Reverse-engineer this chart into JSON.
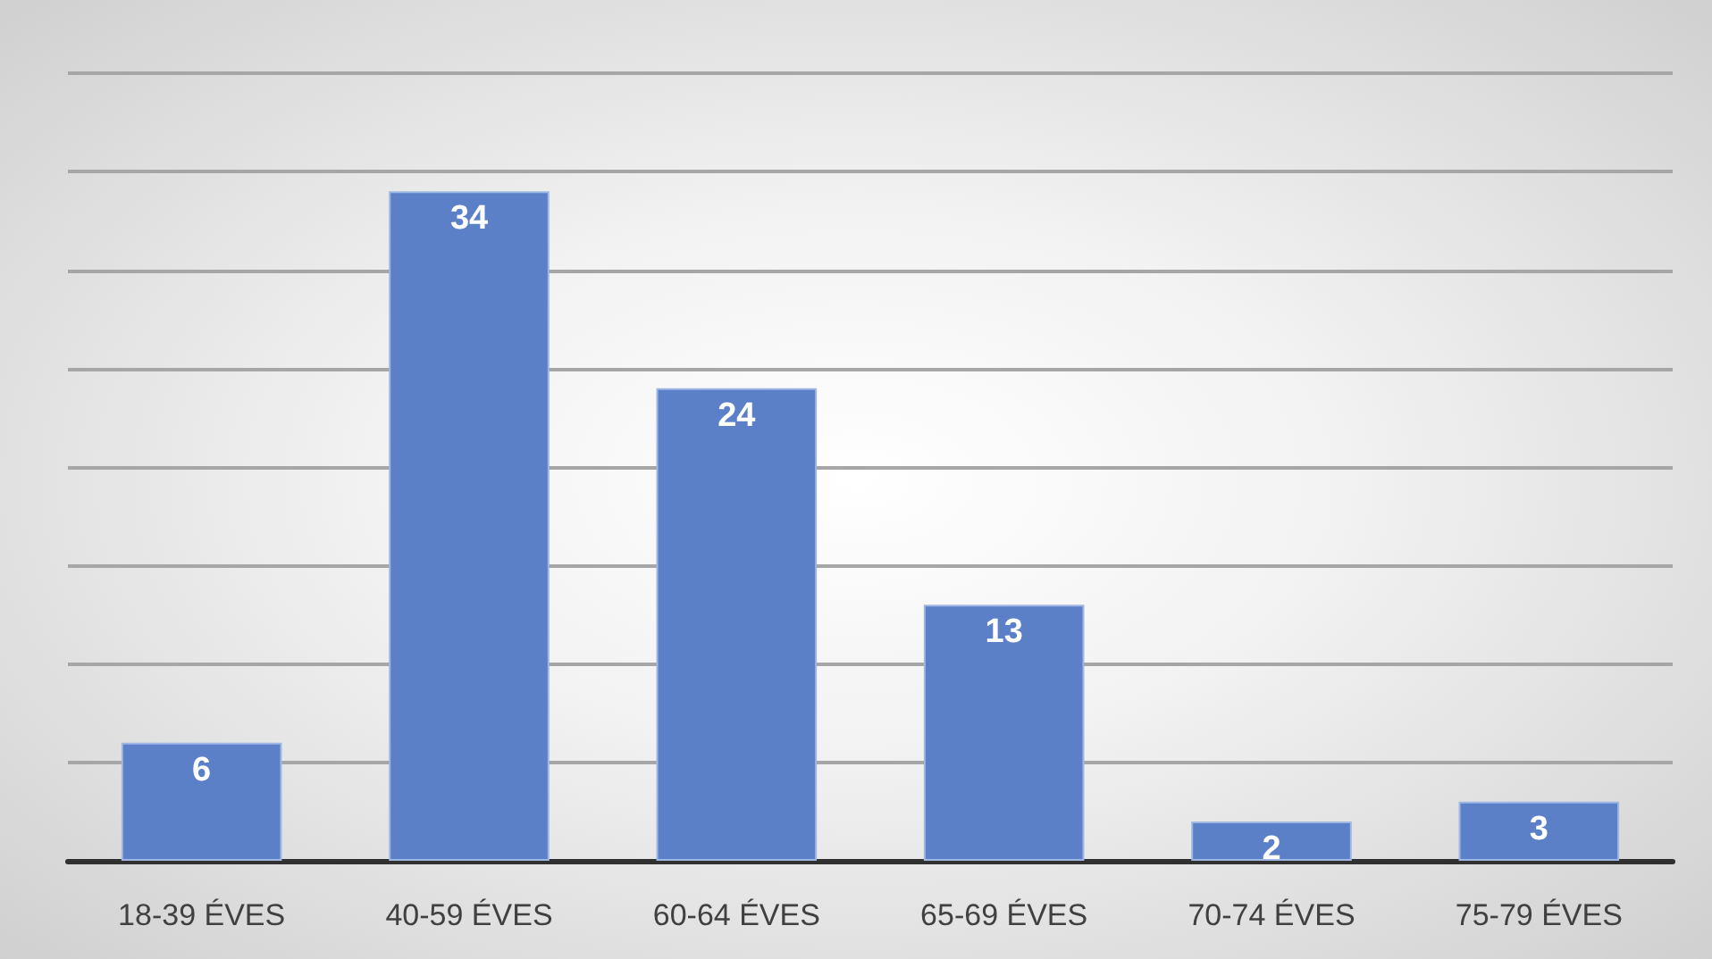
{
  "chart_data": {
    "type": "bar",
    "categories": [
      "18-39 ÉVES",
      "40-59 ÉVES",
      "60-64 ÉVES",
      "65-69 ÉVES",
      "70-74 ÉVES",
      "75-79 ÉVES"
    ],
    "values": [
      6,
      34,
      24,
      13,
      2,
      3
    ],
    "color": "#5b80c8",
    "data_labels": true,
    "ylim": [
      0,
      40
    ],
    "yticks": [
      {
        "value": 0,
        "label": null
      },
      {
        "value": 5,
        "label": null
      },
      {
        "value": 10,
        "label": null
      },
      {
        "value": 15,
        "label": null
      },
      {
        "value": 20,
        "label": null
      },
      {
        "value": 25,
        "label": null
      },
      {
        "value": 30,
        "label": null
      },
      {
        "value": 35,
        "label": null
      },
      {
        "value": 40,
        "label": null
      }
    ],
    "grid": "y",
    "tick_labels": "x"
  }
}
